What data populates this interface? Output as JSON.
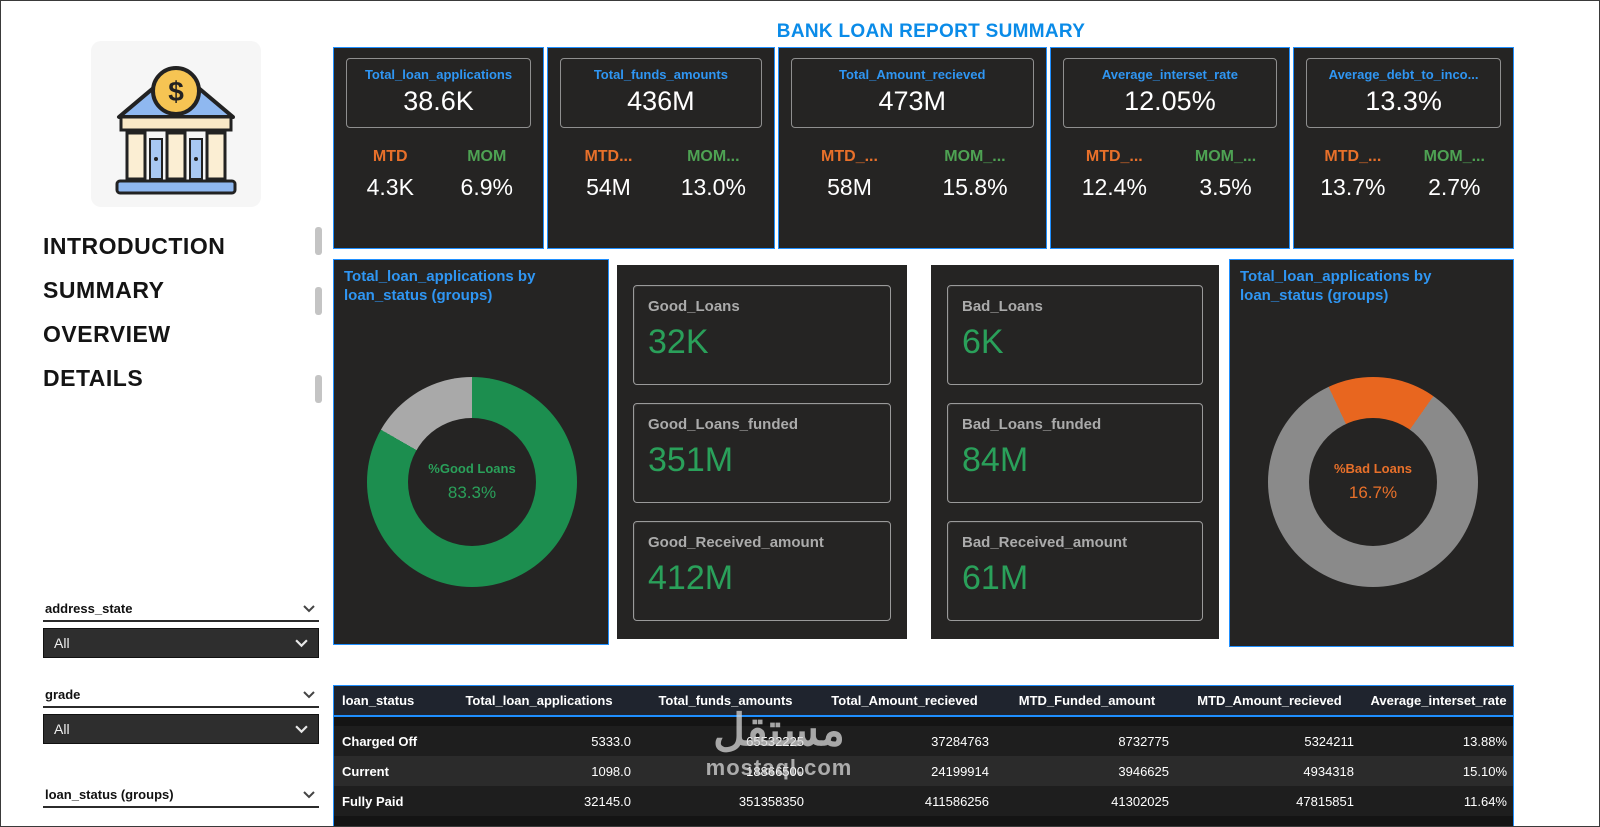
{
  "title": "BANK LOAN REPORT SUMMARY",
  "colors": {
    "accent_blue": "#1F8FFF",
    "title_blue": "#0A8BE8",
    "label_blue": "#2F96F3",
    "orange": "#E8702A",
    "green": "#4EA253",
    "value_green": "#2AA05A",
    "donut_green": "#1C8E4F",
    "donut_gray": "#A9A9A9",
    "donut_dark_gray": "#8A8A8A",
    "donut_orange": "#E8661F",
    "card_bg": "#252423"
  },
  "sidebar": {
    "nav": [
      "INTRODUCTION",
      "SUMMARY",
      "OVERVIEW",
      "DETAILS"
    ],
    "slicers": [
      {
        "label": "address_state",
        "value": "All"
      },
      {
        "label": "grade",
        "value": "All"
      },
      {
        "label": "loan_status (groups)",
        "value": ""
      }
    ]
  },
  "kpi_cards": [
    {
      "label": "Total_loan_applications",
      "value": "38.6K",
      "mtd_label": "MTD",
      "mtd_value": "4.3K",
      "mom_label": "MOM",
      "mom_value": "6.9%"
    },
    {
      "label": "Total_funds_amounts",
      "value": "436M",
      "mtd_label": "MTD...",
      "mtd_value": "54M",
      "mom_label": "MOM...",
      "mom_value": "13.0%"
    },
    {
      "label": "Total_Amount_recieved",
      "value": "473M",
      "mtd_label": "MTD_...",
      "mtd_value": "58M",
      "mom_label": "MOM_...",
      "mom_value": "15.8%"
    },
    {
      "label": "Average_interset_rate",
      "value": "12.05%",
      "mtd_label": "MTD_...",
      "mtd_value": "12.4%",
      "mom_label": "MOM_...",
      "mom_value": "3.5%"
    },
    {
      "label": "Average_debt_to_inco...",
      "value": "13.3%",
      "mtd_label": "MTD_...",
      "mtd_value": "13.7%",
      "mom_label": "MOM_...",
      "mom_value": "2.7%"
    }
  ],
  "good_panel": {
    "items": [
      {
        "label": "Good_Loans",
        "value": "32K"
      },
      {
        "label": "Good_Loans_funded",
        "value": "351M"
      },
      {
        "label": "Good_Received_amount",
        "value": "412M"
      }
    ]
  },
  "bad_panel": {
    "items": [
      {
        "label": "Bad_Loans",
        "value": "6K"
      },
      {
        "label": "Bad_Loans_funded",
        "value": "84M"
      },
      {
        "label": "Bad_Received_amount",
        "value": "61M"
      }
    ]
  },
  "chart_data": [
    {
      "type": "pie",
      "variant": "donut",
      "title": "Total_loan_applications by loan_status (groups)",
      "labels": [
        "Good Loans",
        "Bad Loans"
      ],
      "values": [
        83.3,
        16.7
      ],
      "colors": [
        "#1C8E4F",
        "#A9A9A9"
      ],
      "start_angle": 0,
      "center_label": "%Good Loans",
      "center_value": "83.3%",
      "legend": false
    },
    {
      "type": "pie",
      "variant": "donut",
      "title": "Total_loan_applications by loan_status (groups)",
      "labels": [
        "Bad Loans",
        "Good Loans"
      ],
      "values": [
        16.7,
        83.3
      ],
      "colors": [
        "#E8661F",
        "#8A8A8A"
      ],
      "start_angle": -25,
      "center_label": "%Bad Loans",
      "center_value": "16.7%",
      "legend": false
    }
  ],
  "table": {
    "columns": [
      "loan_status",
      "Total_loan_applications",
      "Total_funds_amounts",
      "Total_Amount_recieved",
      "MTD_Funded_amount",
      "MTD_Amount_recieved",
      "Average_interset_rate"
    ],
    "rows": [
      [
        "Charged Off",
        "5333.0",
        "65532225",
        "37284763",
        "8732775",
        "5324211",
        "13.88%"
      ],
      [
        "Current",
        "1098.0",
        "18866500",
        "24199914",
        "3946625",
        "4934318",
        "15.10%"
      ],
      [
        "Fully Paid",
        "32145.0",
        "351358350",
        "411586256",
        "41302025",
        "47815851",
        "11.64%"
      ]
    ]
  },
  "watermark": {
    "arabic": "مستقل",
    "latin": "mostaql.com"
  }
}
